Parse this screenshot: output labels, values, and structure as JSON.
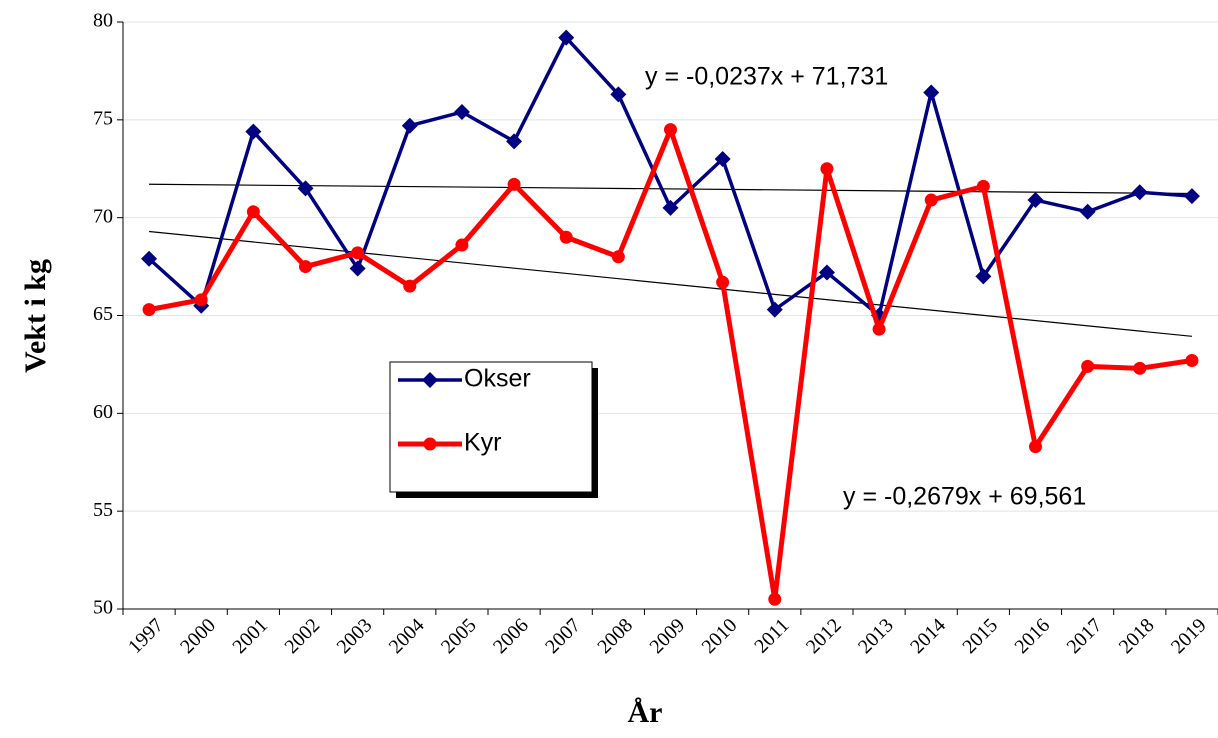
{
  "chart_data": {
    "type": "line",
    "x_label": "År",
    "y_label": "Vekt i kg",
    "categories": [
      "1997",
      "2000",
      "2001",
      "2002",
      "2003",
      "2004",
      "2005",
      "2006",
      "2007",
      "2008",
      "2009",
      "2010",
      "2011",
      "2012",
      "2013",
      "2014",
      "2015",
      "2016",
      "2017",
      "2018",
      "2019"
    ],
    "series": [
      {
        "name": "Okser",
        "color": "#000080",
        "marker": "diamond",
        "values": [
          67.9,
          65.5,
          74.4,
          71.5,
          67.4,
          74.7,
          75.4,
          73.9,
          79.2,
          76.3,
          70.5,
          73.0,
          65.3,
          67.2,
          65.0,
          76.4,
          67.0,
          70.9,
          70.3,
          71.3,
          71.1
        ]
      },
      {
        "name": "Kyr",
        "color": "#ff0000",
        "marker": "circle",
        "values": [
          65.3,
          65.8,
          70.3,
          67.5,
          68.2,
          66.5,
          68.6,
          71.7,
          69.0,
          68.0,
          74.5,
          66.7,
          50.5,
          72.5,
          64.3,
          70.9,
          71.6,
          58.3,
          62.4,
          62.3,
          62.7
        ]
      }
    ],
    "trendlines": [
      {
        "label": "y = -0,0237x + 71,731",
        "slope": -0.0237,
        "intercept": 71.731
      },
      {
        "label": "y = -0,2679x + 69,561",
        "slope": -0.2679,
        "intercept": 69.561
      }
    ],
    "ylim": [
      50,
      80
    ],
    "yticks": [
      50,
      55,
      60,
      65,
      70,
      75,
      80
    ],
    "grid": true
  }
}
